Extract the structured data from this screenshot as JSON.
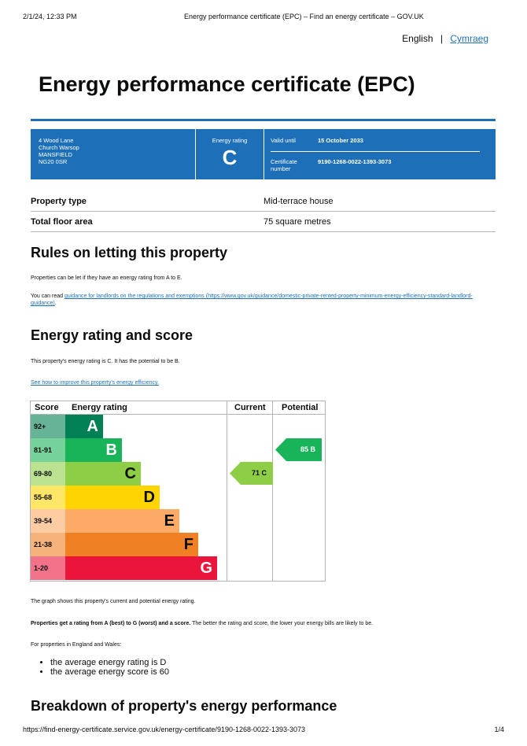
{
  "print_header": {
    "datetime": "2/1/24, 12:33 PM",
    "title": "Energy performance certificate (EPC) – Find an energy certificate – GOV.UK"
  },
  "language": {
    "english": "English",
    "separator": "|",
    "welsh": "Cymraeg"
  },
  "page_title": "Energy performance certificate (EPC)",
  "banner": {
    "address": [
      "4 Wood Lane",
      "Church Warsop",
      "MANSFIELD",
      "NG20 0SR"
    ],
    "rating_label": "Energy rating",
    "rating": "C",
    "valid_label": "Valid until",
    "valid_value": "15 October 2033",
    "cert_label": "Certificate number",
    "cert_value": "9190-1268-0022-1393-3073"
  },
  "property": [
    {
      "key": "Property type",
      "value": "Mid-terrace house"
    },
    {
      "key": "Total floor area",
      "value": "75 square metres"
    }
  ],
  "rules": {
    "heading": "Rules on letting this property",
    "p1": "Properties can be let if they have an energy rating from A to E.",
    "p2_prefix": "You can read ",
    "p2_link": "guidance for landlords on the regulations and exemptions (https://www.gov.uk/guidance/domestic-private-rented-property-minimum-energy-efficiency-standard-landlord-guidance)",
    "p2_suffix": "."
  },
  "rating_section": {
    "heading": "Energy rating and score",
    "p1": "This property's energy rating is C. It has the potential to be B.",
    "link": "See how to improve this property's energy efficiency."
  },
  "chart_data": {
    "type": "table",
    "headers": [
      "Score",
      "Energy rating",
      "Current",
      "Potential"
    ],
    "bands": [
      {
        "score": "92+",
        "letter": "A",
        "color": "#008054",
        "light": "#66b398"
      },
      {
        "score": "81-91",
        "letter": "B",
        "color": "#19b459",
        "light": "#75d29b"
      },
      {
        "score": "69-80",
        "letter": "C",
        "color": "#8dce46",
        "light": "#bbe290"
      },
      {
        "score": "55-68",
        "letter": "D",
        "color": "#ffd500",
        "light": "#ffe666"
      },
      {
        "score": "39-54",
        "letter": "E",
        "color": "#fcaa65",
        "light": "#fdcca3"
      },
      {
        "score": "21-38",
        "letter": "F",
        "color": "#ef8023",
        "light": "#f5b37b"
      },
      {
        "score": "1-20",
        "letter": "G",
        "color": "#e9153b",
        "light": "#f27389"
      }
    ],
    "current": {
      "score": 71,
      "letter": "C",
      "label": "71  C"
    },
    "potential": {
      "score": 85,
      "letter": "B",
      "label": "85  B"
    }
  },
  "after_chart": {
    "p1": "The graph shows this property's current and potential energy rating.",
    "p2_bold": "Properties get a rating from A (best) to G (worst) and a score.",
    "p2_rest": " The better the rating and score, the lower your energy bills are likely to be.",
    "p3": "For properties in England and Wales:",
    "bullets": [
      "the average energy rating is D",
      "the average energy score is 60"
    ]
  },
  "breakdown_heading": "Breakdown of property's energy performance",
  "footer": {
    "url": "https://find-energy-certificate.service.gov.uk/energy-certificate/9190-1268-0022-1393-3073",
    "page": "1/4"
  }
}
